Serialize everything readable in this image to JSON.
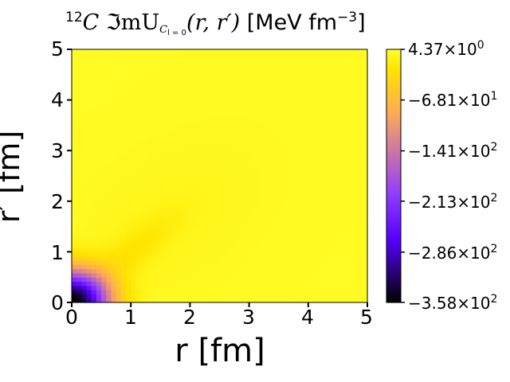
{
  "chart_data": {
    "type": "heatmap",
    "title_parts": {
      "mass_number": "12",
      "nucleus": "C",
      "quantity": "ℑmU",
      "subscript": "C",
      "subsubscript": "l = 0",
      "args": "(r, r′)",
      "unit": "[MeV fm",
      "unit_exponent": "−3",
      "unit_close": "]"
    },
    "xlabel": "r [fm]",
    "ylabel": "r′ [fm]",
    "x_ticks": [
      "0",
      "1",
      "2",
      "3",
      "4",
      "5"
    ],
    "y_ticks": [
      "0",
      "1",
      "2",
      "3",
      "4",
      "5"
    ],
    "xlim": [
      0,
      5
    ],
    "ylim": [
      0,
      5
    ],
    "colorbar": {
      "colormap": "gnuplot2",
      "vmin": -358,
      "vmax": 4.37,
      "ticks": [
        {
          "value": 4.37,
          "mantissa": "4.37",
          "times": "×10",
          "exponent": "0"
        },
        {
          "value": -68.1,
          "mantissa": "−6.81",
          "times": "×10",
          "exponent": "1"
        },
        {
          "value": -141,
          "mantissa": "−1.41",
          "times": "×10",
          "exponent": "2"
        },
        {
          "value": -213,
          "mantissa": "−2.13",
          "times": "×10",
          "exponent": "2"
        },
        {
          "value": -286,
          "mantissa": "−2.86",
          "times": "×10",
          "exponent": "2"
        },
        {
          "value": -358,
          "mantissa": "−3.58",
          "times": "×10",
          "exponent": "2"
        }
      ]
    }
  }
}
